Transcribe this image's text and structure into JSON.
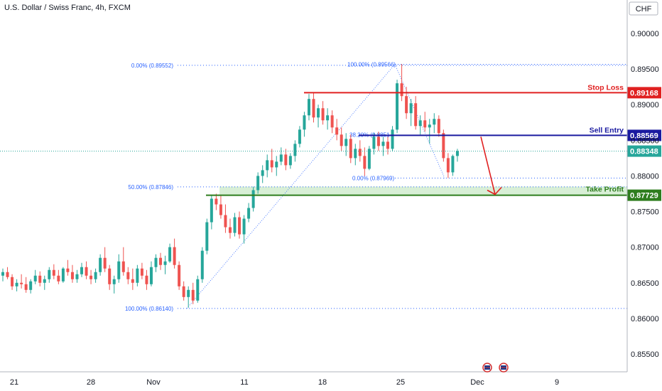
{
  "chart_data": {
    "type": "candlestick",
    "title": "U.S. Dollar / Swiss Franc, 4h, FXCM",
    "currency": "CHF",
    "y_range": [
      0.8533,
      0.9058
    ],
    "y_ticks": [
      "0.90000",
      "0.89500",
      "0.89000",
      "0.88500",
      "0.88000",
      "0.87500",
      "0.87000",
      "0.86500",
      "0.86000",
      "0.85500"
    ],
    "x_ticks": [
      "21",
      "28",
      "Nov",
      "11",
      "18",
      "25",
      "Dec",
      "9"
    ],
    "last_price": "0.88348",
    "levels": {
      "stop_loss": {
        "label": "Stop Loss",
        "value": "0.89168",
        "color": "#e02020"
      },
      "sell_entry": {
        "label": "Sell Entry",
        "value": "0.88569",
        "color": "#1a1aa0"
      },
      "take_profit": {
        "label": "Take Profit",
        "value": "0.87729",
        "color": "#2e7d1e"
      }
    },
    "fib_labels": {
      "left_top": "0.00% (0.89552)",
      "left_mid": "50.00% (0.87846)",
      "left_bottom": "100.00% (0.86140)",
      "right_top": "100.00% (0.89566)",
      "right_mid": "38.20% (0.8851",
      "right_bottom": "0.00% (0.87969)"
    },
    "candles": [
      [
        0.866,
        0.867,
        0.8652,
        0.8665
      ],
      [
        0.8665,
        0.8672,
        0.8655,
        0.8658
      ],
      [
        0.8658,
        0.8662,
        0.864,
        0.8645
      ],
      [
        0.8645,
        0.8655,
        0.8638,
        0.865
      ],
      [
        0.865,
        0.8662,
        0.8642,
        0.8648
      ],
      [
        0.8648,
        0.8658,
        0.8636,
        0.864
      ],
      [
        0.864,
        0.8655,
        0.8635,
        0.8652
      ],
      [
        0.8652,
        0.8668,
        0.8648,
        0.866
      ],
      [
        0.866,
        0.8666,
        0.8645,
        0.865
      ],
      [
        0.865,
        0.866,
        0.864,
        0.8655
      ],
      [
        0.8655,
        0.8672,
        0.865,
        0.8668
      ],
      [
        0.8668,
        0.8676,
        0.8655,
        0.866
      ],
      [
        0.866,
        0.8668,
        0.8648,
        0.8652
      ],
      [
        0.8652,
        0.8672,
        0.865,
        0.867
      ],
      [
        0.867,
        0.8682,
        0.866,
        0.8665
      ],
      [
        0.8665,
        0.8675,
        0.865,
        0.8655
      ],
      [
        0.8655,
        0.8668,
        0.865,
        0.8662
      ],
      [
        0.8662,
        0.8678,
        0.8658,
        0.8672
      ],
      [
        0.8672,
        0.868,
        0.8655,
        0.866
      ],
      [
        0.866,
        0.8668,
        0.8648,
        0.8655
      ],
      [
        0.8655,
        0.867,
        0.865,
        0.8665
      ],
      [
        0.8665,
        0.869,
        0.866,
        0.8685
      ],
      [
        0.8685,
        0.87,
        0.8665,
        0.867
      ],
      [
        0.867,
        0.8675,
        0.864,
        0.8648
      ],
      [
        0.8648,
        0.866,
        0.8635,
        0.8655
      ],
      [
        0.8655,
        0.869,
        0.865,
        0.868
      ],
      [
        0.868,
        0.87,
        0.866,
        0.8665
      ],
      [
        0.8665,
        0.8672,
        0.8648,
        0.8655
      ],
      [
        0.8655,
        0.867,
        0.864,
        0.865
      ],
      [
        0.865,
        0.8675,
        0.8645,
        0.867
      ],
      [
        0.867,
        0.8678,
        0.8655,
        0.866
      ],
      [
        0.866,
        0.8668,
        0.864,
        0.8648
      ],
      [
        0.8648,
        0.868,
        0.8645,
        0.8672
      ],
      [
        0.8672,
        0.869,
        0.8665,
        0.8685
      ],
      [
        0.8685,
        0.8692,
        0.8668,
        0.8675
      ],
      [
        0.8675,
        0.8688,
        0.8662,
        0.868
      ],
      [
        0.868,
        0.8705,
        0.8678,
        0.87
      ],
      [
        0.87,
        0.8712,
        0.867,
        0.8675
      ],
      [
        0.8675,
        0.868,
        0.864,
        0.8645
      ],
      [
        0.8645,
        0.8652,
        0.8625,
        0.863
      ],
      [
        0.863,
        0.8645,
        0.8615,
        0.864
      ],
      [
        0.864,
        0.865,
        0.862,
        0.8625
      ],
      [
        0.8625,
        0.866,
        0.8622,
        0.8655
      ],
      [
        0.8655,
        0.87,
        0.865,
        0.8695
      ],
      [
        0.8695,
        0.874,
        0.869,
        0.8735
      ],
      [
        0.8735,
        0.8772,
        0.8725,
        0.8768
      ],
      [
        0.8768,
        0.8775,
        0.8752,
        0.876
      ],
      [
        0.876,
        0.8772,
        0.874,
        0.8745
      ],
      [
        0.8745,
        0.876,
        0.872,
        0.8728
      ],
      [
        0.8728,
        0.874,
        0.8712,
        0.872
      ],
      [
        0.872,
        0.8748,
        0.8715,
        0.8742
      ],
      [
        0.8742,
        0.875,
        0.8712,
        0.8718
      ],
      [
        0.8718,
        0.8745,
        0.8705,
        0.874
      ],
      [
        0.874,
        0.8762,
        0.8735,
        0.8755
      ],
      [
        0.8755,
        0.8785,
        0.875,
        0.878
      ],
      [
        0.878,
        0.8805,
        0.8775,
        0.88
      ],
      [
        0.88,
        0.8815,
        0.879,
        0.8808
      ],
      [
        0.8808,
        0.883,
        0.8798,
        0.8822
      ],
      [
        0.8822,
        0.8838,
        0.8805,
        0.8812
      ],
      [
        0.8812,
        0.8828,
        0.88,
        0.882
      ],
      [
        0.882,
        0.884,
        0.8815,
        0.883
      ],
      [
        0.883,
        0.8838,
        0.8808,
        0.8815
      ],
      [
        0.8815,
        0.8832,
        0.881,
        0.8828
      ],
      [
        0.8828,
        0.885,
        0.882,
        0.8845
      ],
      [
        0.8845,
        0.887,
        0.884,
        0.8865
      ],
      [
        0.8865,
        0.889,
        0.8855,
        0.8885
      ],
      [
        0.8885,
        0.8915,
        0.8878,
        0.8908
      ],
      [
        0.8908,
        0.8917,
        0.8875,
        0.8882
      ],
      [
        0.8882,
        0.89,
        0.8868,
        0.8895
      ],
      [
        0.8895,
        0.8905,
        0.8872,
        0.8878
      ],
      [
        0.8878,
        0.8895,
        0.8865,
        0.8885
      ],
      [
        0.8885,
        0.8892,
        0.886,
        0.8868
      ],
      [
        0.8868,
        0.888,
        0.885,
        0.8858
      ],
      [
        0.8858,
        0.8868,
        0.8835,
        0.8842
      ],
      [
        0.8842,
        0.886,
        0.8828,
        0.8852
      ],
      [
        0.8852,
        0.8858,
        0.8818,
        0.8825
      ],
      [
        0.8825,
        0.8845,
        0.8815,
        0.8838
      ],
      [
        0.8838,
        0.885,
        0.882,
        0.8828
      ],
      [
        0.8828,
        0.884,
        0.88,
        0.881
      ],
      [
        0.881,
        0.8842,
        0.8808,
        0.8838
      ],
      [
        0.8838,
        0.886,
        0.883,
        0.8855
      ],
      [
        0.8855,
        0.8862,
        0.8835,
        0.8842
      ],
      [
        0.8842,
        0.8855,
        0.8828,
        0.8848
      ],
      [
        0.8848,
        0.8855,
        0.883,
        0.8838
      ],
      [
        0.8838,
        0.887,
        0.8835,
        0.8865
      ],
      [
        0.8865,
        0.8935,
        0.886,
        0.893
      ],
      [
        0.893,
        0.8957,
        0.8905,
        0.8912
      ],
      [
        0.8912,
        0.8925,
        0.888,
        0.8888
      ],
      [
        0.8888,
        0.8908,
        0.887,
        0.8902
      ],
      [
        0.8902,
        0.8912,
        0.8865,
        0.887
      ],
      [
        0.887,
        0.8885,
        0.8858,
        0.8878
      ],
      [
        0.8878,
        0.889,
        0.8862,
        0.8868
      ],
      [
        0.8868,
        0.888,
        0.8845,
        0.8872
      ],
      [
        0.8872,
        0.8888,
        0.886,
        0.888
      ],
      [
        0.888,
        0.8885,
        0.8855,
        0.886
      ],
      [
        0.886,
        0.8865,
        0.882,
        0.8825
      ],
      [
        0.8825,
        0.8832,
        0.8797,
        0.8805
      ],
      [
        0.8805,
        0.883,
        0.88,
        0.8828
      ],
      [
        0.8828,
        0.8838,
        0.882,
        0.8835
      ]
    ]
  }
}
